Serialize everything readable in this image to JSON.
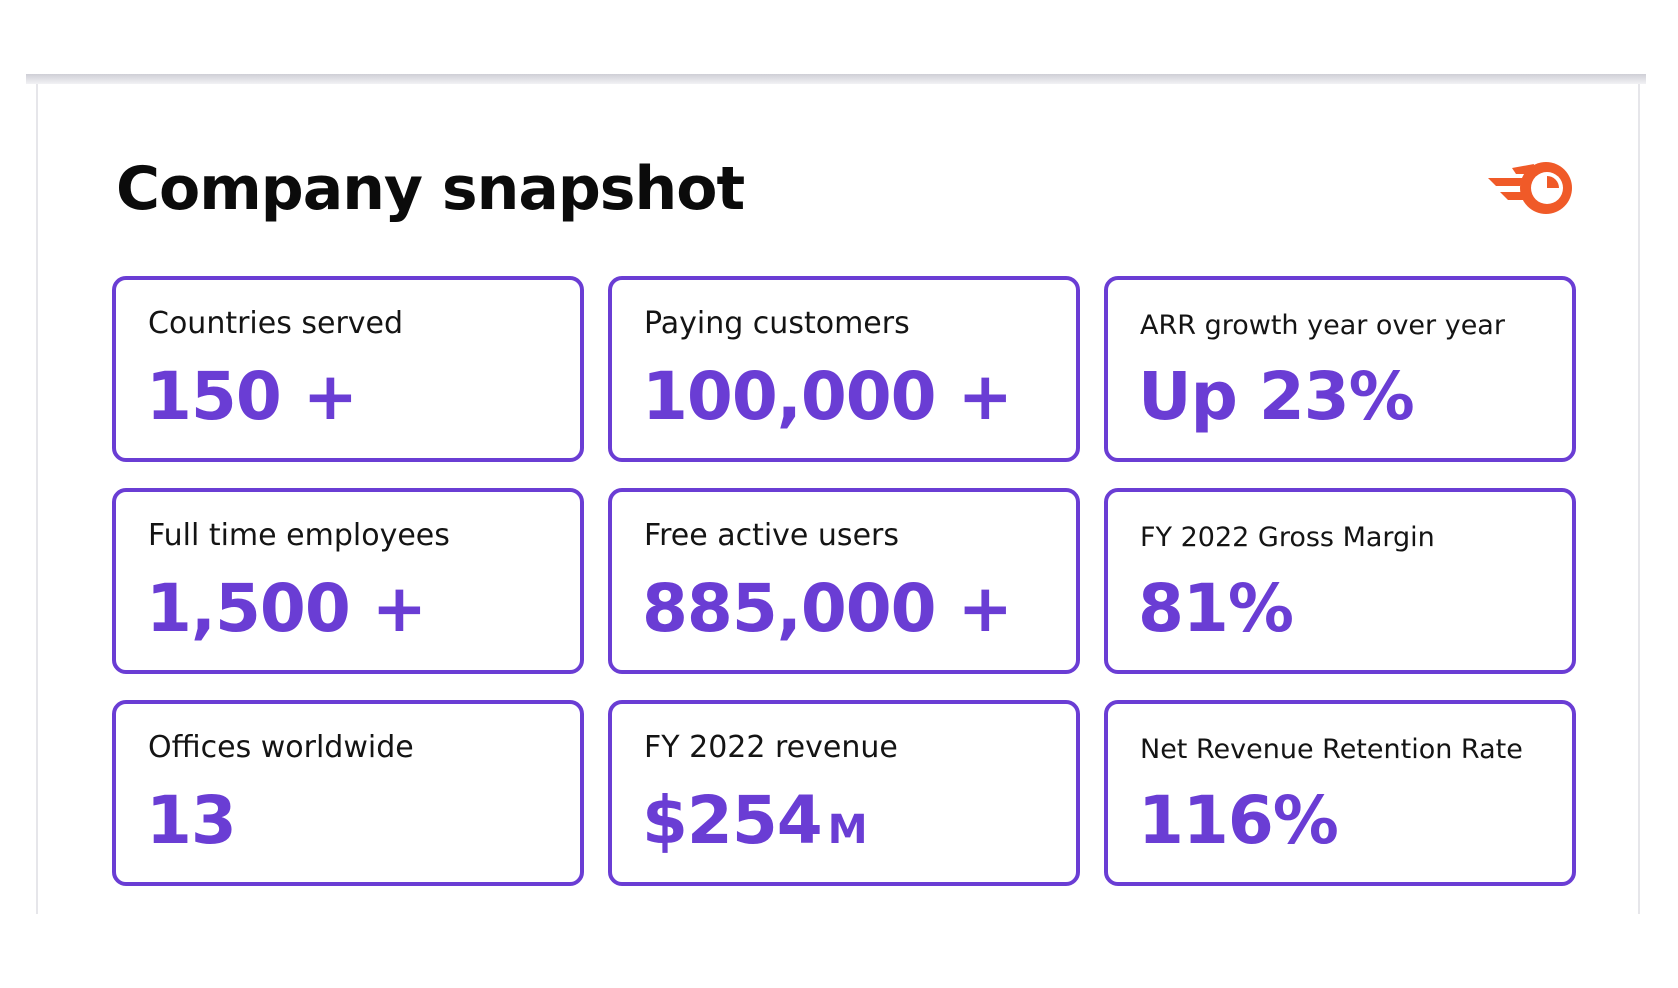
{
  "title": "Company snapshot",
  "colors": {
    "accent": "#6a3dd4",
    "logo": "#f05a28",
    "text": "#141414"
  },
  "logo": {
    "icon": "semrush-fireball-icon"
  },
  "stats": [
    {
      "label": "Countries served",
      "value": "150 +"
    },
    {
      "label": "Paying customers",
      "value": "100,000 +"
    },
    {
      "label": "ARR growth year over year",
      "value": "Up 23%"
    },
    {
      "label": "Full time employees",
      "value": "1,500 +"
    },
    {
      "label": "Free active users",
      "value": "885,000 +"
    },
    {
      "label": "FY 2022 Gross Margin",
      "value": "81%"
    },
    {
      "label": "Offices worldwide",
      "value": "13"
    },
    {
      "label": "FY 2022 revenue",
      "value": "$254",
      "unit": "M"
    },
    {
      "label": "Net Revenue Retention Rate",
      "value": "116%"
    }
  ]
}
